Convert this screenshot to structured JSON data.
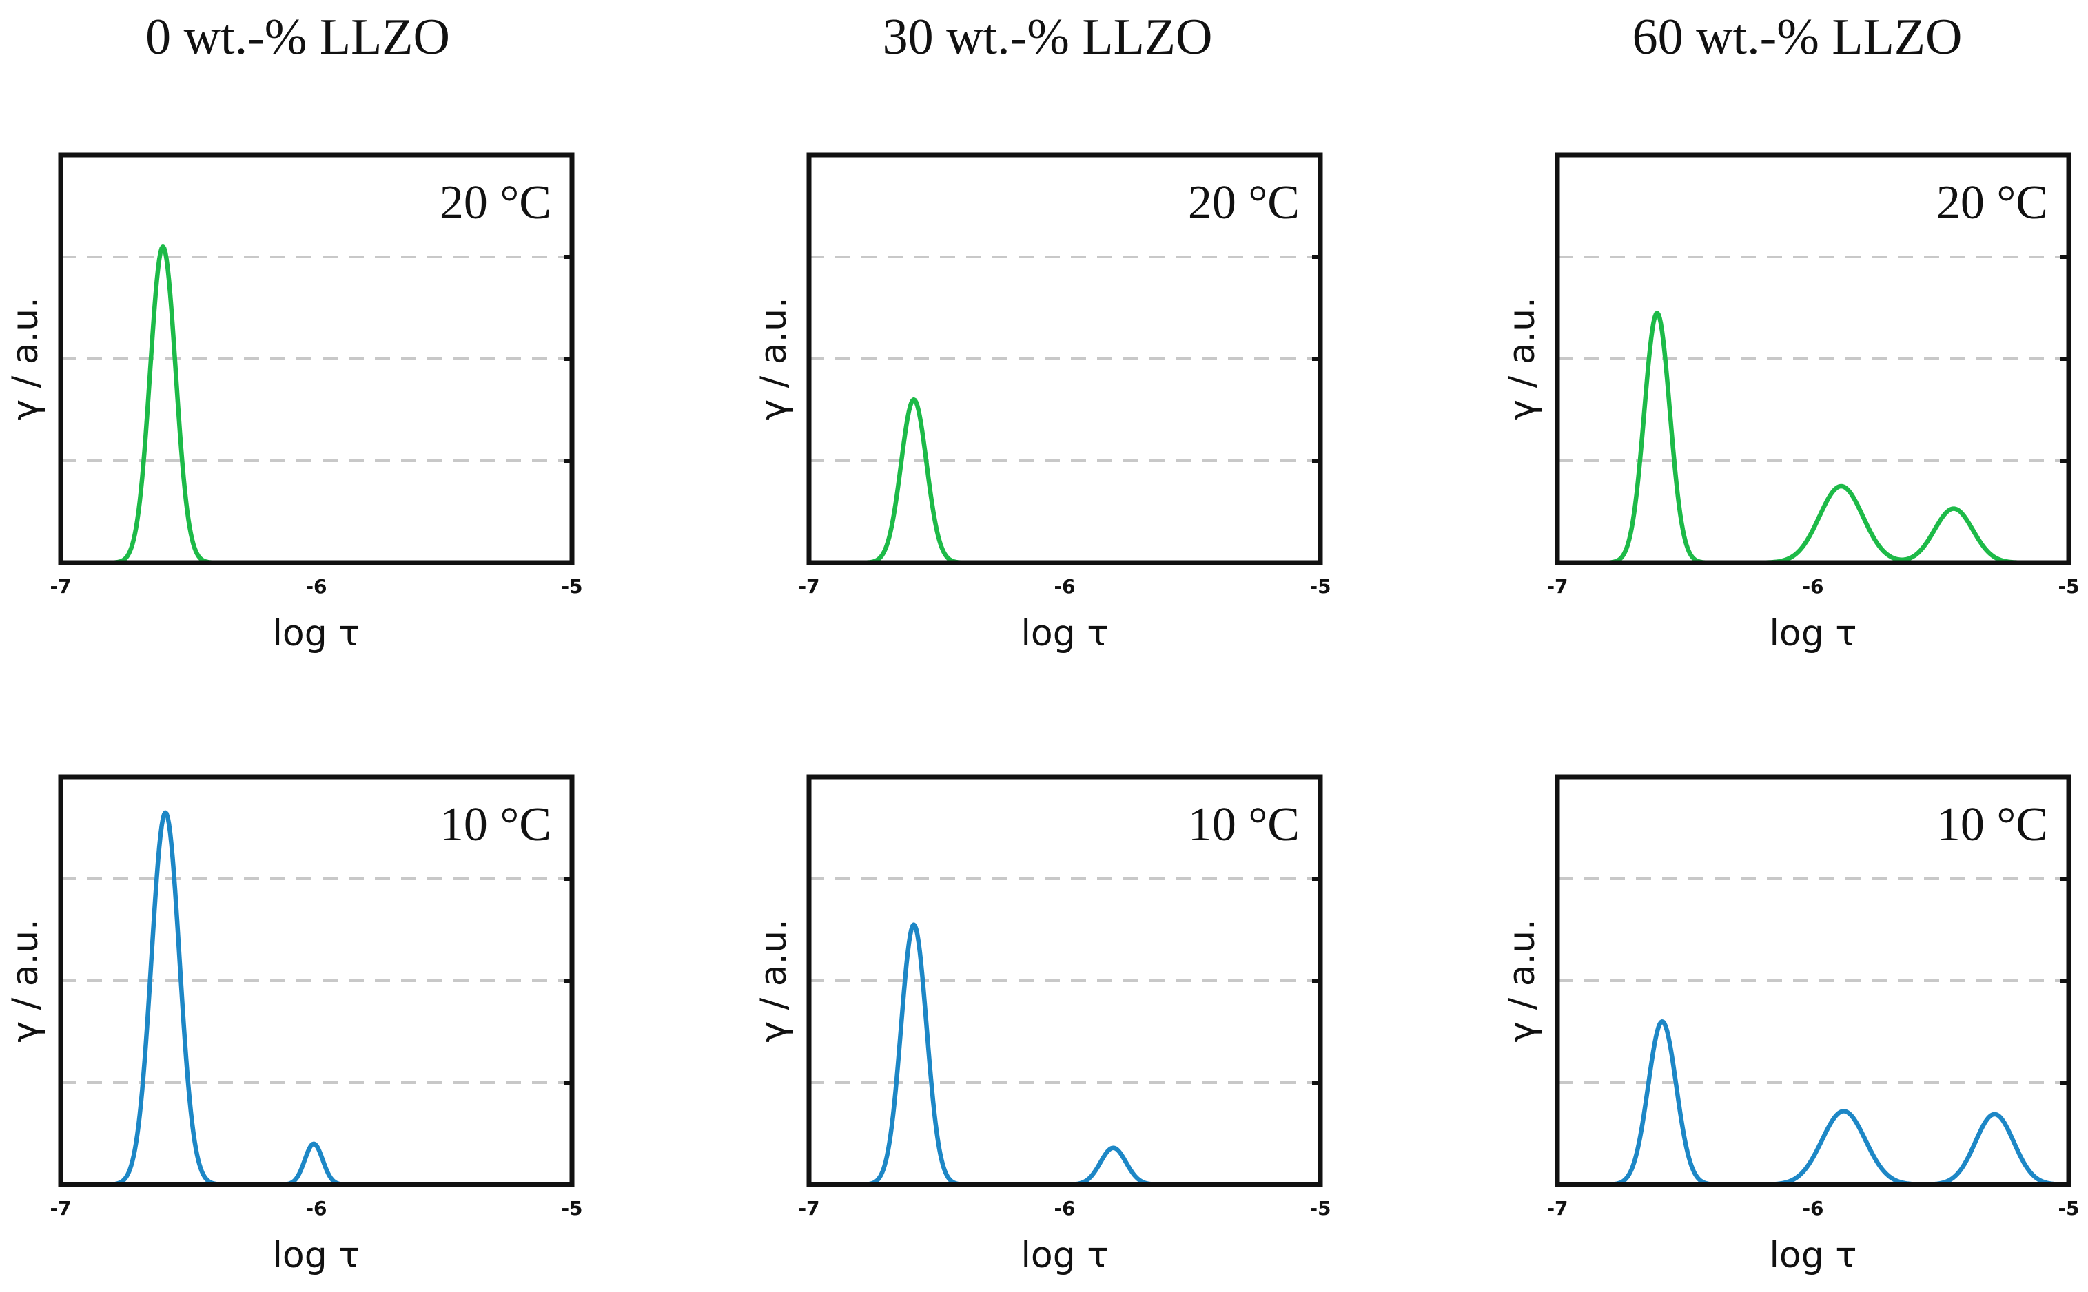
{
  "figure": {
    "column_titles": [
      "0 wt.-% LLZO",
      "30 wt.-% LLZO",
      "60 wt.-% LLZO"
    ]
  },
  "colors": {
    "20C": "#1dba48",
    "10C": "#1d87c6"
  },
  "chart_data": [
    {
      "type": "line",
      "column": 0,
      "row": 0,
      "title": "0 wt.-% LLZO",
      "label": "20 °C",
      "color_key": "20C",
      "xlabel": "log τ",
      "ylabel": "γ / a.u.",
      "xlim": [
        -7,
        -5
      ],
      "ylim": [
        0,
        4
      ],
      "xticks": [
        "-7",
        "-6",
        "-5"
      ],
      "grid_y": [
        1,
        2,
        3
      ],
      "peaks": [
        {
          "center": -6.6,
          "height": 3.1,
          "width": 0.05
        }
      ]
    },
    {
      "type": "line",
      "column": 1,
      "row": 0,
      "title": "30 wt.-% LLZO",
      "label": "20 °C",
      "color_key": "20C",
      "xlabel": "log τ",
      "ylabel": "γ / a.u.",
      "xlim": [
        -7,
        -5
      ],
      "ylim": [
        0,
        4
      ],
      "xticks": [
        "-7",
        "-6",
        "-5"
      ],
      "grid_y": [
        1,
        2,
        3
      ],
      "peaks": [
        {
          "center": -6.59,
          "height": 1.6,
          "width": 0.05
        }
      ]
    },
    {
      "type": "line",
      "column": 2,
      "row": 0,
      "title": "60 wt.-% LLZO",
      "label": "20 °C",
      "color_key": "20C",
      "xlabel": "log τ",
      "ylabel": "γ / a.u.",
      "xlim": [
        -7,
        -5
      ],
      "ylim": [
        0,
        4
      ],
      "xticks": [
        "-7",
        "-6",
        "-5"
      ],
      "grid_y": [
        1,
        2,
        3
      ],
      "peaks": [
        {
          "center": -6.61,
          "height": 2.45,
          "width": 0.05
        },
        {
          "center": -5.89,
          "height": 0.75,
          "width": 0.085
        },
        {
          "center": -5.45,
          "height": 0.53,
          "width": 0.075
        }
      ]
    },
    {
      "type": "line",
      "column": 0,
      "row": 1,
      "title": "0 wt.-% LLZO",
      "label": "10 °C",
      "color_key": "10C",
      "xlabel": "log τ",
      "ylabel": "γ / a.u.",
      "xlim": [
        -7,
        -5
      ],
      "ylim": [
        0,
        4
      ],
      "xticks": [
        "-7",
        "-6",
        "-5"
      ],
      "grid_y": [
        1,
        2,
        3
      ],
      "peaks": [
        {
          "center": -6.59,
          "height": 3.65,
          "width": 0.055
        },
        {
          "center": -6.01,
          "height": 0.4,
          "width": 0.035
        }
      ]
    },
    {
      "type": "line",
      "column": 1,
      "row": 1,
      "title": "30 wt.-% LLZO",
      "label": "10 °C",
      "color_key": "10C",
      "xlabel": "log τ",
      "ylabel": "γ / a.u.",
      "xlim": [
        -7,
        -5
      ],
      "ylim": [
        0,
        4
      ],
      "xticks": [
        "-7",
        "-6",
        "-5"
      ],
      "grid_y": [
        1,
        2,
        3
      ],
      "peaks": [
        {
          "center": -6.59,
          "height": 2.55,
          "width": 0.05
        },
        {
          "center": -5.81,
          "height": 0.36,
          "width": 0.05
        }
      ]
    },
    {
      "type": "line",
      "column": 2,
      "row": 1,
      "title": "60 wt.-% LLZO",
      "label": "10 °C",
      "color_key": "10C",
      "xlabel": "log τ",
      "ylabel": "γ / a.u.",
      "xlim": [
        -7,
        -5
      ],
      "ylim": [
        0,
        4
      ],
      "xticks": [
        "-7",
        "-6",
        "-5"
      ],
      "grid_y": [
        1,
        2,
        3
      ],
      "peaks": [
        {
          "center": -6.59,
          "height": 1.6,
          "width": 0.055
        },
        {
          "center": -5.88,
          "height": 0.72,
          "width": 0.085
        },
        {
          "center": -5.29,
          "height": 0.69,
          "width": 0.075
        }
      ]
    }
  ]
}
